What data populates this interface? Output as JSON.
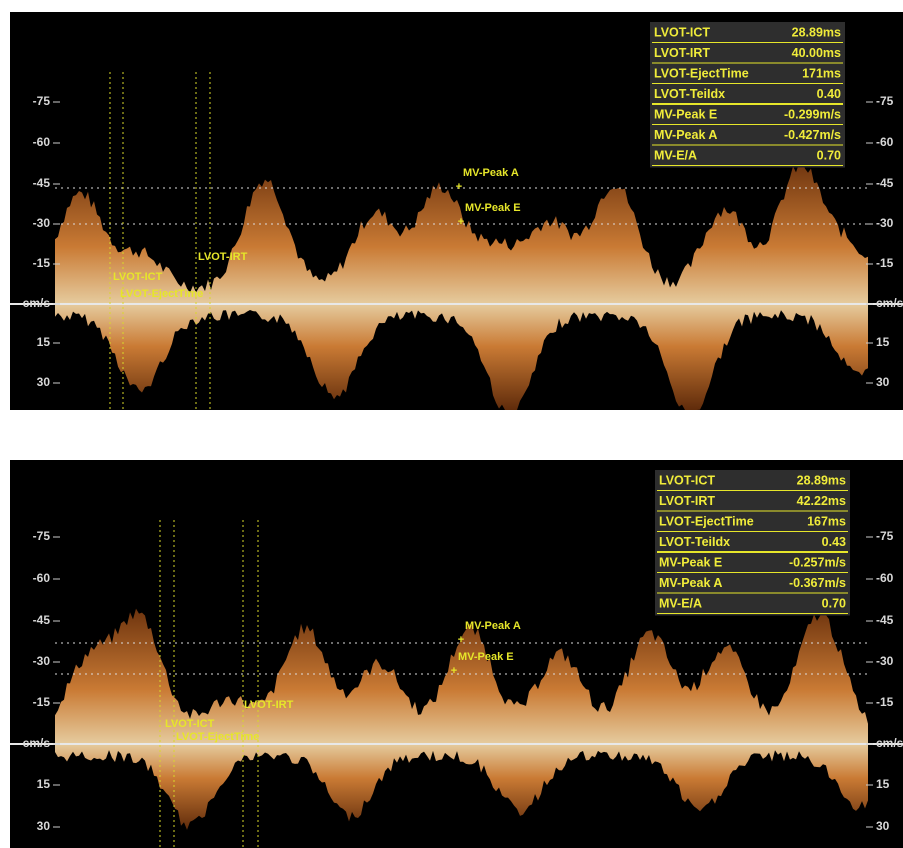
{
  "panels": [
    {
      "measurements": [
        {
          "label": "LVOT-ICT",
          "value": "28.89ms"
        },
        {
          "label": "LVOT-IRT",
          "value": "40.00ms"
        },
        {
          "label": "LVOT-EjectTime",
          "value": "171ms"
        },
        {
          "label": "LVOT-TeiIdx",
          "value": "0.40"
        },
        {
          "label": "MV-Peak E",
          "value": "-0.299m/s"
        },
        {
          "label": "MV-Peak A",
          "value": "-0.427m/s"
        },
        {
          "label": "MV-E/A",
          "value": "0.70"
        }
      ],
      "left_scale": [
        "-75",
        "-60",
        "-45",
        "-30",
        "-15",
        "cm/s",
        "15",
        "30"
      ],
      "right_scale": [
        "-75",
        "-60",
        "-45",
        "-30",
        "-15",
        "cm/s",
        "15",
        "30"
      ],
      "annotations": [
        "MV-Peak A",
        "MV-Peak E",
        "LVOT-ICT",
        "LVOT-EjectTime",
        "LVOT-IRT"
      ]
    },
    {
      "measurements": [
        {
          "label": "LVOT-ICT",
          "value": "28.89ms"
        },
        {
          "label": "LVOT-IRT",
          "value": "42.22ms"
        },
        {
          "label": "LVOT-EjectTime",
          "value": "167ms"
        },
        {
          "label": "LVOT-TeiIdx",
          "value": "0.43"
        },
        {
          "label": "MV-Peak E",
          "value": "-0.257m/s"
        },
        {
          "label": "MV-Peak A",
          "value": "-0.367m/s"
        },
        {
          "label": "MV-E/A",
          "value": "0.70"
        }
      ],
      "left_scale": [
        "-75",
        "-60",
        "-45",
        "-30",
        "-15",
        "cm/s",
        "15",
        "30"
      ],
      "right_scale": [
        "-75",
        "-60",
        "-45",
        "-30",
        "-15",
        "cm/s",
        "15",
        "30"
      ],
      "annotations": [
        "MV-Peak A",
        "MV-Peak E",
        "LVOT-ICT",
        "LVOT-EjectTime",
        "LVOT-IRT"
      ]
    }
  ]
}
